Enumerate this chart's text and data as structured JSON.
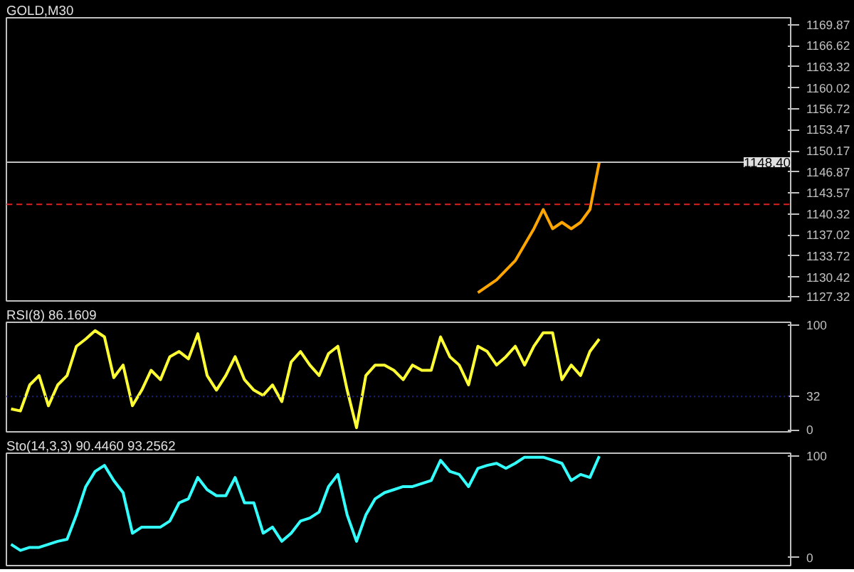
{
  "chart_data": [
    {
      "type": "line",
      "title": "GOLD,M30",
      "tick_labels": "y",
      "grid": false,
      "categories": [
        null,
        null,
        null,
        null,
        null,
        null,
        null,
        null,
        null,
        null,
        null,
        null,
        null,
        null,
        null,
        null,
        null,
        null,
        null,
        null,
        null,
        null,
        null,
        null,
        null,
        null,
        null,
        null,
        null,
        null,
        null,
        null,
        null,
        null,
        null,
        null,
        null,
        null,
        null,
        null,
        null,
        null,
        null,
        null,
        null,
        null,
        null,
        null,
        null,
        null,
        null,
        null,
        null,
        null,
        null,
        null,
        null,
        null,
        null,
        null,
        null,
        null,
        null,
        null,
        null,
        null,
        null,
        null,
        null,
        null,
        null,
        null,
        null,
        null,
        null,
        null,
        null,
        null,
        null,
        null,
        null,
        null,
        null,
        null
      ],
      "ylim": [
        1126.7,
        1171.0
      ],
      "yticks": [
        1127.32,
        1130.42,
        1133.72,
        1137.02,
        1140.32,
        1143.57,
        1146.87,
        1150.17,
        1153.47,
        1156.72,
        1160.02,
        1163.32,
        1166.62,
        1169.87
      ],
      "ref_lines": [
        {
          "axis": "y",
          "value": 1148.4,
          "label": "1148.40",
          "color": "#c0c0c0",
          "line_style": "solid"
        },
        {
          "axis": "y",
          "value": 1141.8,
          "color": "#e02020",
          "line_style": "dashed"
        }
      ],
      "series": [
        {
          "color": "#ffa500",
          "values": [
            null,
            null,
            null,
            null,
            null,
            null,
            null,
            null,
            null,
            null,
            null,
            null,
            null,
            null,
            null,
            null,
            null,
            null,
            null,
            null,
            null,
            null,
            null,
            null,
            null,
            null,
            null,
            null,
            null,
            null,
            null,
            null,
            null,
            null,
            null,
            null,
            null,
            null,
            null,
            null,
            null,
            null,
            null,
            null,
            null,
            null,
            null,
            null,
            null,
            null,
            1128.0,
            1129,
            1130,
            1131.5,
            1133,
            1135.5,
            1138,
            1141,
            1138,
            1139,
            1138,
            1139,
            1141,
            1148.4,
            null,
            null,
            null,
            null,
            null,
            null,
            null,
            null,
            null,
            null,
            null,
            null,
            null,
            null,
            null,
            null,
            null,
            null,
            null,
            null
          ]
        }
      ]
    },
    {
      "type": "line",
      "title": "RSI(8) 86.1609",
      "tick_labels": "y",
      "grid": false,
      "categories": [
        null,
        null,
        null,
        null,
        null,
        null,
        null,
        null,
        null,
        null,
        null,
        null,
        null,
        null,
        null,
        null,
        null,
        null,
        null,
        null,
        null,
        null,
        null,
        null,
        null,
        null,
        null,
        null,
        null,
        null,
        null,
        null,
        null,
        null,
        null,
        null,
        null,
        null,
        null,
        null,
        null,
        null,
        null,
        null,
        null,
        null,
        null,
        null,
        null,
        null,
        null,
        null,
        null,
        null,
        null,
        null,
        null,
        null,
        null,
        null,
        null,
        null,
        null,
        null,
        null,
        null,
        null,
        null,
        null,
        null,
        null,
        null,
        null,
        null,
        null,
        null,
        null,
        null,
        null,
        null,
        null,
        null,
        null,
        null
      ],
      "ylim": [
        -2,
        103
      ],
      "yticks": [
        0,
        32,
        100
      ],
      "ref_lines": [
        {
          "axis": "y",
          "value": 32,
          "color": "#202080",
          "line_style": "dotted"
        }
      ],
      "series": [
        {
          "color": "#ffff33",
          "values": [
            20,
            18,
            43,
            52,
            23,
            43,
            52,
            80,
            87,
            95,
            89,
            50,
            62,
            23,
            38,
            57,
            48,
            70,
            75,
            68,
            92,
            52,
            38,
            52,
            70,
            48,
            38,
            33,
            43,
            27,
            65,
            75,
            62,
            52,
            73,
            80,
            38,
            2,
            52,
            62,
            62,
            57,
            48,
            62,
            57,
            57,
            89,
            70,
            62,
            43,
            80,
            75,
            62,
            70,
            80,
            62,
            80,
            93,
            93,
            48,
            62,
            52,
            75,
            87,
            null,
            null,
            null,
            null,
            null,
            null,
            null,
            null,
            null,
            null,
            null,
            null,
            null,
            null,
            null,
            null,
            null,
            null,
            null,
            null
          ]
        }
      ]
    },
    {
      "type": "line",
      "title": "Sto(14,3,3) 90.4460 93.2562",
      "tick_labels": "y",
      "grid": false,
      "categories": [
        null,
        null,
        null,
        null,
        null,
        null,
        null,
        null,
        null,
        null,
        null,
        null,
        null,
        null,
        null,
        null,
        null,
        null,
        null,
        null,
        null,
        null,
        null,
        null,
        null,
        null,
        null,
        null,
        null,
        null,
        null,
        null,
        null,
        null,
        null,
        null,
        null,
        null,
        null,
        null,
        null,
        null,
        null,
        null,
        null,
        null,
        null,
        null,
        null,
        null,
        null,
        null,
        null,
        null,
        null,
        null,
        null,
        null,
        null,
        null,
        null,
        null,
        null,
        null,
        null,
        null,
        null,
        null,
        null,
        null,
        null,
        null,
        null,
        null,
        null,
        null,
        null,
        null,
        null,
        null,
        null,
        null,
        null,
        null
      ],
      "ylim": [
        -8,
        103
      ],
      "yticks": [
        0,
        100
      ],
      "series": [
        {
          "color": "#33ffff",
          "values": [
            13,
            7,
            10,
            10,
            13,
            16,
            18,
            42,
            70,
            85,
            91,
            76,
            64,
            24,
            30,
            30,
            30,
            36,
            54,
            58,
            79,
            67,
            61,
            61,
            79,
            54,
            54,
            24,
            30,
            16,
            24,
            36,
            39,
            45,
            70,
            82,
            42,
            16,
            42,
            58,
            64,
            67,
            70,
            70,
            73,
            76,
            96,
            85,
            82,
            70,
            88,
            91,
            93,
            88,
            93,
            99,
            99,
            99,
            96,
            93,
            76,
            82,
            79,
            100,
            null,
            null,
            null,
            null,
            null,
            null,
            null,
            null,
            null,
            null,
            null,
            null,
            null,
            null,
            null,
            null,
            null,
            null,
            null,
            null
          ]
        }
      ]
    }
  ]
}
